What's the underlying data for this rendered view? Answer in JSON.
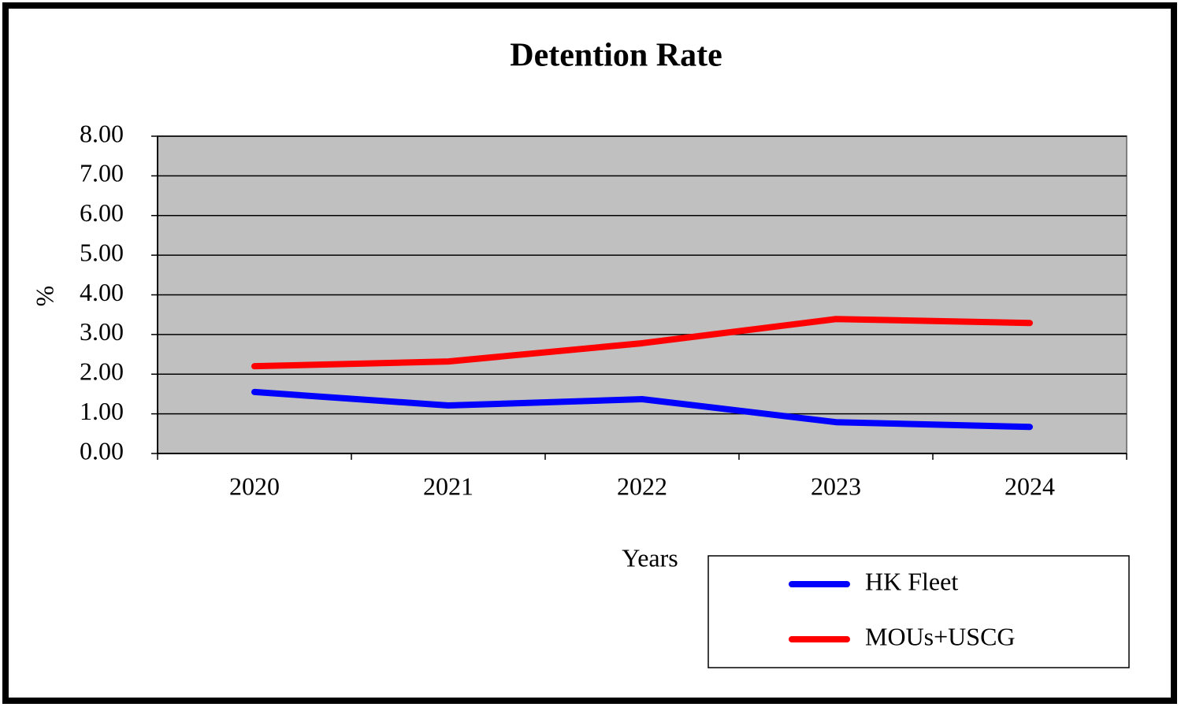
{
  "chart_data": {
    "type": "line",
    "title": "Detention Rate",
    "x_label": "Years",
    "y_label": "%",
    "categories": [
      "2020",
      "2021",
      "2022",
      "2023",
      "2024"
    ],
    "series": [
      {
        "name": "HK Fleet",
        "color": "#0000ff",
        "values": [
          1.55,
          1.21,
          1.37,
          0.79,
          0.67
        ]
      },
      {
        "name": "MOUs+USCG",
        "color": "#ff0000",
        "values": [
          2.2,
          2.32,
          2.78,
          3.39,
          3.29
        ]
      }
    ],
    "ylim": [
      0,
      8
    ],
    "yticks": [
      {
        "value": 0,
        "label": "0.00"
      },
      {
        "value": 1,
        "label": "1.00"
      },
      {
        "value": 2,
        "label": "2.00"
      },
      {
        "value": 3,
        "label": "3.00"
      },
      {
        "value": 4,
        "label": "4.00"
      },
      {
        "value": 5,
        "label": "5.00"
      },
      {
        "value": 6,
        "label": "6.00"
      },
      {
        "value": 7,
        "label": "7.00"
      },
      {
        "value": 8,
        "label": "8.00"
      }
    ],
    "grid": true,
    "plot_background": "#c0c0c0"
  }
}
